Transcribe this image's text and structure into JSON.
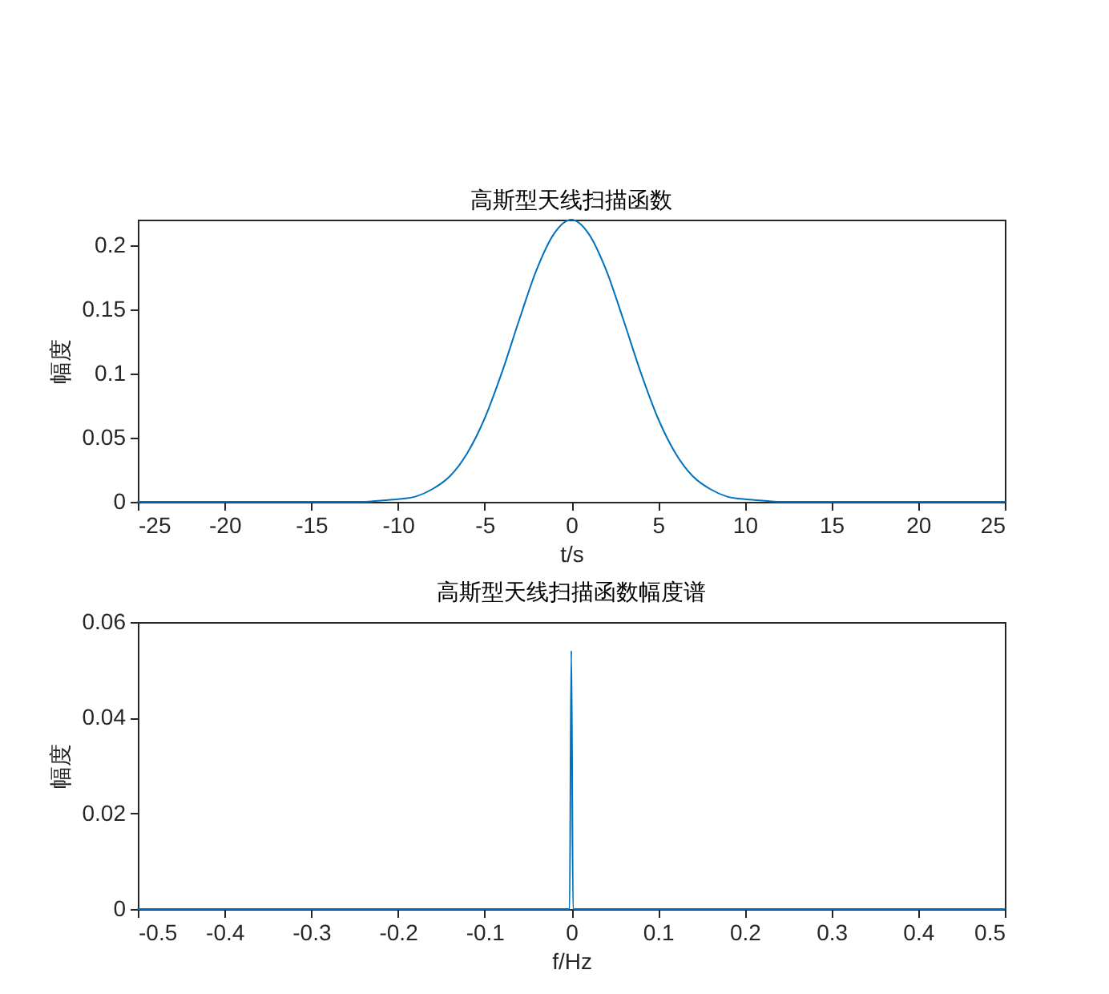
{
  "chart_data": [
    {
      "type": "line",
      "title": "高斯型天线扫描函数",
      "xlabel": "t/s",
      "ylabel": "幅度",
      "x": [
        -25,
        -20,
        -15,
        -12,
        -11,
        -10,
        -9,
        -8,
        -7,
        -6,
        -5,
        -4,
        -3,
        -2,
        -1,
        0,
        1,
        2,
        3,
        4,
        5,
        6,
        7,
        8,
        9,
        10,
        11,
        12,
        15,
        20,
        25
      ],
      "series": [
        {
          "color": "#0072bd",
          "values": [
            0,
            0,
            0,
            0,
            0.001,
            0.002,
            0.004,
            0.01,
            0.02,
            0.038,
            0.065,
            0.101,
            0.142,
            0.181,
            0.209,
            0.22,
            0.209,
            0.181,
            0.142,
            0.101,
            0.065,
            0.038,
            0.02,
            0.01,
            0.004,
            0.002,
            0.001,
            0,
            0,
            0,
            0
          ]
        }
      ],
      "xlim": [
        -25,
        25
      ],
      "xticks": [
        -25,
        -20,
        -15,
        -10,
        -5,
        0,
        5,
        10,
        15,
        20,
        25
      ],
      "ylim": [
        0,
        0.22
      ],
      "yticks": [
        0,
        0.05,
        0.1,
        0.15,
        0.2
      ]
    },
    {
      "type": "line",
      "title": "高斯型天线扫描函数幅度谱",
      "xlabel": "f/Hz",
      "ylabel": "幅度",
      "x": [
        -0.5,
        -0.002,
        0,
        0.002,
        0.5
      ],
      "series": [
        {
          "color": "#0072bd",
          "values": [
            0,
            0,
            0.054,
            0,
            0
          ]
        }
      ],
      "xlim": [
        -0.5,
        0.5
      ],
      "xticks": [
        -0.5,
        -0.4,
        -0.3,
        -0.2,
        -0.1,
        0,
        0.1,
        0.2,
        0.3,
        0.4,
        0.5
      ],
      "ylim": [
        0,
        0.06
      ],
      "yticks": [
        0,
        0.02,
        0.04,
        0.06
      ]
    }
  ]
}
